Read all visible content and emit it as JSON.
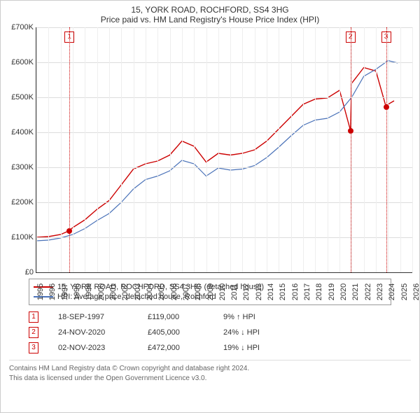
{
  "title": "15, YORK ROAD, ROCHFORD, SS4 3HG",
  "subtitle": "Price paid vs. HM Land Registry's House Price Index (HPI)",
  "chart": {
    "type": "line",
    "ylim": [
      0,
      700000
    ],
    "ytick_step": 100000,
    "yticks": [
      "£0",
      "£100K",
      "£200K",
      "£300K",
      "£400K",
      "£500K",
      "£600K",
      "£700K"
    ],
    "xlim": [
      1995,
      2026
    ],
    "xticks": [
      1995,
      1996,
      1997,
      1998,
      1999,
      2000,
      2001,
      2002,
      2003,
      2004,
      2005,
      2006,
      2007,
      2008,
      2009,
      2010,
      2011,
      2012,
      2013,
      2014,
      2015,
      2016,
      2017,
      2018,
      2019,
      2020,
      2021,
      2022,
      2023,
      2024,
      2025,
      2026
    ],
    "grid_color": "#dddddd",
    "background_color": "#ffffff",
    "series": [
      {
        "name": "price_paid",
        "label": "15, YORK ROAD, ROCHFORD, SS4 3HG (detached house)",
        "color": "#cc0000",
        "line_width": 1.4,
        "points": [
          [
            1995,
            100000
          ],
          [
            1996,
            102000
          ],
          [
            1997,
            108000
          ],
          [
            1997.72,
            119000
          ],
          [
            1998,
            128000
          ],
          [
            1999,
            150000
          ],
          [
            2000,
            180000
          ],
          [
            2001,
            205000
          ],
          [
            2002,
            250000
          ],
          [
            2003,
            295000
          ],
          [
            2004,
            310000
          ],
          [
            2005,
            318000
          ],
          [
            2006,
            335000
          ],
          [
            2007,
            375000
          ],
          [
            2008,
            360000
          ],
          [
            2009,
            315000
          ],
          [
            2010,
            340000
          ],
          [
            2011,
            335000
          ],
          [
            2012,
            340000
          ],
          [
            2013,
            350000
          ],
          [
            2014,
            375000
          ],
          [
            2015,
            410000
          ],
          [
            2016,
            445000
          ],
          [
            2017,
            480000
          ],
          [
            2018,
            495000
          ],
          [
            2019,
            498000
          ],
          [
            2020,
            520000
          ],
          [
            2020.9,
            405000
          ],
          [
            2021,
            540000
          ],
          [
            2022,
            585000
          ],
          [
            2023,
            575000
          ],
          [
            2023.84,
            472000
          ],
          [
            2024,
            480000
          ],
          [
            2024.5,
            490000
          ]
        ]
      },
      {
        "name": "hpi",
        "label": "HPI: Average price, detached house, Rochford",
        "color": "#4a72b8",
        "line_width": 1.2,
        "points": [
          [
            1995,
            90000
          ],
          [
            1996,
            92000
          ],
          [
            1997,
            98000
          ],
          [
            1998,
            108000
          ],
          [
            1999,
            125000
          ],
          [
            2000,
            148000
          ],
          [
            2001,
            168000
          ],
          [
            2002,
            200000
          ],
          [
            2003,
            238000
          ],
          [
            2004,
            265000
          ],
          [
            2005,
            275000
          ],
          [
            2006,
            290000
          ],
          [
            2007,
            320000
          ],
          [
            2008,
            310000
          ],
          [
            2009,
            275000
          ],
          [
            2010,
            298000
          ],
          [
            2011,
            292000
          ],
          [
            2012,
            295000
          ],
          [
            2013,
            305000
          ],
          [
            2014,
            328000
          ],
          [
            2015,
            358000
          ],
          [
            2016,
            390000
          ],
          [
            2017,
            420000
          ],
          [
            2018,
            435000
          ],
          [
            2019,
            440000
          ],
          [
            2020,
            458000
          ],
          [
            2021,
            500000
          ],
          [
            2022,
            560000
          ],
          [
            2023,
            580000
          ],
          [
            2024,
            605000
          ],
          [
            2024.8,
            598000
          ]
        ]
      }
    ],
    "markers": [
      {
        "n": "1",
        "date": "18-SEP-1997",
        "x": 1997.72,
        "y": 119000,
        "price": "£119,000",
        "diff": "9% ↑ HPI"
      },
      {
        "n": "2",
        "date": "24-NOV-2020",
        "x": 2020.9,
        "y": 405000,
        "price": "£405,000",
        "diff": "24% ↓ HPI"
      },
      {
        "n": "3",
        "date": "02-NOV-2023",
        "x": 2023.84,
        "y": 472000,
        "price": "£472,000",
        "diff": "19% ↓ HPI"
      }
    ]
  },
  "legend": {
    "items": [
      {
        "color": "#cc0000",
        "label": "15, YORK ROAD, ROCHFORD, SS4 3HG (detached house)"
      },
      {
        "color": "#4a72b8",
        "label": "HPI: Average price, detached house, Rochford"
      }
    ]
  },
  "footer": {
    "line1": "Contains HM Land Registry data © Crown copyright and database right 2024.",
    "line2": "This data is licensed under the Open Government Licence v3.0."
  }
}
